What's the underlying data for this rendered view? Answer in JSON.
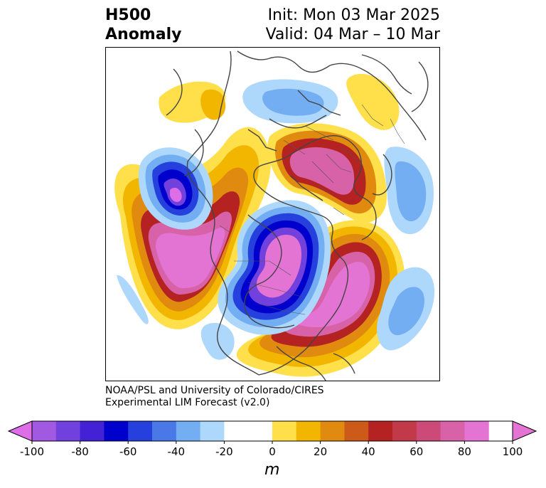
{
  "title": {
    "left_line1": "H500",
    "left_line2": "Anomaly",
    "right_line1": "Init: Mon 03 Mar 2025",
    "right_line2": "Valid: 04 Mar – 10 Mar"
  },
  "credit": {
    "line1": "NOAA/PSL and University of Colorado/CIRES",
    "line2": "Experimental LIM Forecast (v2.0)"
  },
  "colorbar": {
    "unit": "m",
    "ticks": [
      "-100",
      "-80",
      "-60",
      "-40",
      "-20",
      "0",
      "20",
      "40",
      "60",
      "80",
      "100"
    ],
    "colors": {
      "n100": "#dd6ee8",
      "n90": "#a059e0",
      "n80": "#7240dd",
      "n70": "#4222d4",
      "n60": "#0000cc",
      "n50": "#2540dd",
      "n40": "#4a78e6",
      "n30": "#74aef2",
      "n20": "#aed8fb",
      "zero": "#ffffff",
      "p10": "#ffdf4a",
      "p20": "#f2b500",
      "p30": "#e08a10",
      "p40": "#cc5a18",
      "p50": "#b42222",
      "p60": "#c23a4a",
      "p70": "#cc4a78",
      "p80": "#d862a8",
      "p90": "#e474d4"
    }
  }
}
